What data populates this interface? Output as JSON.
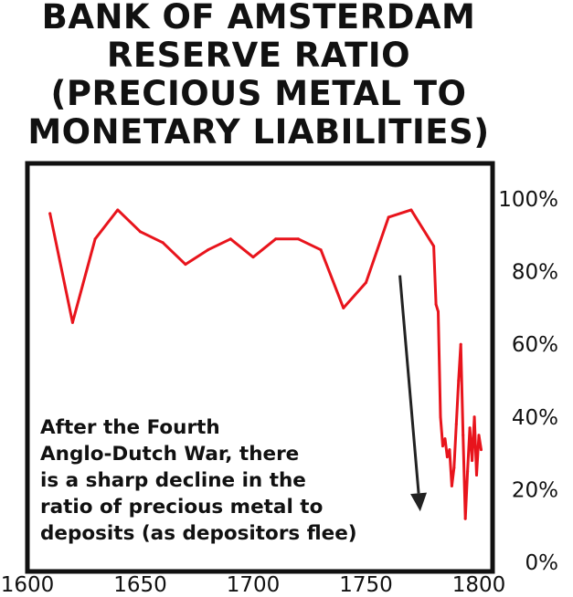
{
  "chart_data": {
    "type": "line",
    "title_lines": [
      "BANK OF AMSTERDAM",
      "RESERVE RATIO",
      "(PRECIOUS METAL TO",
      "MONETARY LIABILITIES)"
    ],
    "xlim": [
      1600,
      1800
    ],
    "ylim": [
      0,
      100
    ],
    "x_ticks": [
      1600,
      1650,
      1700,
      1750,
      1800
    ],
    "y_ticks": [
      0,
      20,
      40,
      60,
      80,
      100
    ],
    "y_tick_labels": [
      "0%",
      "20%",
      "40%",
      "60%",
      "80%",
      "100%"
    ],
    "x_tick_labels": [
      "1600",
      "1650",
      "1700",
      "1750",
      "1800"
    ],
    "grid": false,
    "line_color": "#e8141c",
    "series": [
      {
        "x": [
          1610,
          1620,
          1630,
          1640,
          1650,
          1660,
          1670,
          1680,
          1690,
          1700,
          1710,
          1720,
          1730,
          1740,
          1750,
          1760,
          1770,
          1780,
          1781,
          1782,
          1783,
          1784,
          1785,
          1786,
          1787,
          1788,
          1789,
          1790,
          1791,
          1792,
          1793,
          1794,
          1795,
          1796,
          1797,
          1798,
          1799,
          1800,
          1801
        ],
        "y": [
          96,
          66,
          89,
          97,
          91,
          88,
          82,
          86,
          89,
          84,
          89,
          89,
          86,
          70,
          77,
          95,
          97,
          87,
          71,
          69,
          40,
          32,
          34,
          29,
          31,
          21,
          26,
          38,
          50,
          60,
          35,
          12,
          25,
          37,
          28,
          40,
          24,
          35,
          31
        ]
      }
    ],
    "annotation": {
      "lines": [
        "After the Fourth",
        "Anglo-Dutch War, there",
        "is a sharp decline in the",
        "ratio of precious metal to",
        "deposits (as depositors flee)"
      ],
      "arrow_from": {
        "x": 1765,
        "y": 79
      },
      "arrow_to": {
        "x": 1774,
        "y": 14
      },
      "arrow_color": "#222222"
    }
  }
}
